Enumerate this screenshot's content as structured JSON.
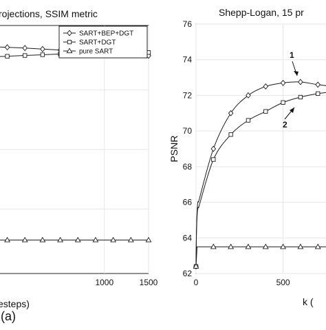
{
  "colors": {
    "line": "#1a1a1a",
    "grid": "#e6e6e6",
    "background": "#ffffff"
  },
  "panel_label": "(a)",
  "chart_data": [
    {
      "type": "line",
      "title": "rojections, SSIM metric",
      "xlabel": "esteps)",
      "ylabel": "",
      "xlim": [
        -260,
        1500
      ],
      "ylim": [
        0,
        1
      ],
      "x_ticks": [
        1000,
        1500
      ],
      "y_ticks": [],
      "grid": true,
      "legend_placement": "top-right",
      "series": [
        {
          "name": "SART+BEP+DGT",
          "marker": "diamond",
          "x": [
            -260,
            -100,
            100,
            300,
            500,
            700,
            900,
            1100,
            1300,
            1500
          ],
          "y": [
            0.914,
            0.912,
            0.909,
            0.905,
            0.901,
            0.897,
            0.893,
            0.889,
            0.884,
            0.878
          ]
        },
        {
          "name": "SART+DGT",
          "marker": "square",
          "x": [
            -260,
            -100,
            100,
            300,
            500,
            700,
            900,
            1100,
            1300,
            1500
          ],
          "y": [
            0.874,
            0.876,
            0.879,
            0.882,
            0.885,
            0.887,
            0.889,
            0.89,
            0.891,
            0.891
          ]
        },
        {
          "name": "pure SART",
          "marker": "triangle",
          "x": [
            -260,
            -100,
            100,
            300,
            500,
            700,
            900,
            1100,
            1300,
            1500
          ],
          "y": [
            0.135,
            0.135,
            0.135,
            0.135,
            0.135,
            0.135,
            0.135,
            0.135,
            0.135,
            0.135
          ]
        }
      ]
    },
    {
      "type": "line",
      "title": "Shepp-Logan, 15 pr",
      "xlabel": "k (",
      "ylabel": "PSNR",
      "xlim": [
        0,
        790
      ],
      "ylim": [
        62,
        76
      ],
      "x_ticks": [
        0,
        500
      ],
      "y_ticks": [
        62,
        64,
        66,
        68,
        70,
        72,
        74,
        76
      ],
      "grid": true,
      "series": [
        {
          "name": "",
          "marker": "diamond",
          "x": [
            0,
            100,
            200,
            300,
            400,
            500,
            600,
            700,
            790
          ],
          "y": [
            62.4,
            69.0,
            71.0,
            72.0,
            72.5,
            72.7,
            72.75,
            72.6,
            72.5
          ]
        },
        {
          "name": "",
          "marker": "square",
          "x": [
            0,
            100,
            200,
            300,
            400,
            500,
            600,
            700,
            790
          ],
          "y": [
            62.4,
            68.4,
            69.8,
            70.6,
            71.1,
            71.6,
            71.9,
            72.1,
            72.2
          ]
        },
        {
          "name": "",
          "marker": "triangle",
          "x": [
            0,
            100,
            200,
            300,
            400,
            500,
            600,
            700,
            790
          ],
          "y": [
            62.4,
            63.5,
            63.5,
            63.5,
            63.5,
            63.5,
            63.5,
            63.5,
            63.5
          ]
        }
      ],
      "annotations": [
        "1",
        "2"
      ]
    }
  ]
}
